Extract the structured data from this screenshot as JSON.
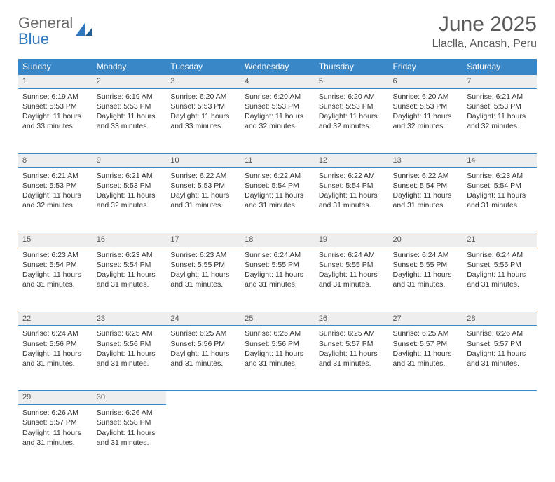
{
  "logo": {
    "general": "General",
    "blue": "Blue"
  },
  "title": "June 2025",
  "location": "Llaclla, Ancash, Peru",
  "colors": {
    "header_bg": "#3a87c8",
    "header_text": "#ffffff",
    "daynum_bg": "#eeeeee",
    "rule": "#3a87c8",
    "body_text": "#333333",
    "title_text": "#5a5a5a",
    "logo_gray": "#6a6a6a",
    "logo_blue": "#2f78bf"
  },
  "weekdays": [
    "Sunday",
    "Monday",
    "Tuesday",
    "Wednesday",
    "Thursday",
    "Friday",
    "Saturday"
  ],
  "weeks": [
    [
      {
        "n": 1,
        "sr": "6:19 AM",
        "ss": "5:53 PM",
        "dl": "11 hours and 33 minutes."
      },
      {
        "n": 2,
        "sr": "6:19 AM",
        "ss": "5:53 PM",
        "dl": "11 hours and 33 minutes."
      },
      {
        "n": 3,
        "sr": "6:20 AM",
        "ss": "5:53 PM",
        "dl": "11 hours and 33 minutes."
      },
      {
        "n": 4,
        "sr": "6:20 AM",
        "ss": "5:53 PM",
        "dl": "11 hours and 32 minutes."
      },
      {
        "n": 5,
        "sr": "6:20 AM",
        "ss": "5:53 PM",
        "dl": "11 hours and 32 minutes."
      },
      {
        "n": 6,
        "sr": "6:20 AM",
        "ss": "5:53 PM",
        "dl": "11 hours and 32 minutes."
      },
      {
        "n": 7,
        "sr": "6:21 AM",
        "ss": "5:53 PM",
        "dl": "11 hours and 32 minutes."
      }
    ],
    [
      {
        "n": 8,
        "sr": "6:21 AM",
        "ss": "5:53 PM",
        "dl": "11 hours and 32 minutes."
      },
      {
        "n": 9,
        "sr": "6:21 AM",
        "ss": "5:53 PM",
        "dl": "11 hours and 32 minutes."
      },
      {
        "n": 10,
        "sr": "6:22 AM",
        "ss": "5:53 PM",
        "dl": "11 hours and 31 minutes."
      },
      {
        "n": 11,
        "sr": "6:22 AM",
        "ss": "5:54 PM",
        "dl": "11 hours and 31 minutes."
      },
      {
        "n": 12,
        "sr": "6:22 AM",
        "ss": "5:54 PM",
        "dl": "11 hours and 31 minutes."
      },
      {
        "n": 13,
        "sr": "6:22 AM",
        "ss": "5:54 PM",
        "dl": "11 hours and 31 minutes."
      },
      {
        "n": 14,
        "sr": "6:23 AM",
        "ss": "5:54 PM",
        "dl": "11 hours and 31 minutes."
      }
    ],
    [
      {
        "n": 15,
        "sr": "6:23 AM",
        "ss": "5:54 PM",
        "dl": "11 hours and 31 minutes."
      },
      {
        "n": 16,
        "sr": "6:23 AM",
        "ss": "5:54 PM",
        "dl": "11 hours and 31 minutes."
      },
      {
        "n": 17,
        "sr": "6:23 AM",
        "ss": "5:55 PM",
        "dl": "11 hours and 31 minutes."
      },
      {
        "n": 18,
        "sr": "6:24 AM",
        "ss": "5:55 PM",
        "dl": "11 hours and 31 minutes."
      },
      {
        "n": 19,
        "sr": "6:24 AM",
        "ss": "5:55 PM",
        "dl": "11 hours and 31 minutes."
      },
      {
        "n": 20,
        "sr": "6:24 AM",
        "ss": "5:55 PM",
        "dl": "11 hours and 31 minutes."
      },
      {
        "n": 21,
        "sr": "6:24 AM",
        "ss": "5:55 PM",
        "dl": "11 hours and 31 minutes."
      }
    ],
    [
      {
        "n": 22,
        "sr": "6:24 AM",
        "ss": "5:56 PM",
        "dl": "11 hours and 31 minutes."
      },
      {
        "n": 23,
        "sr": "6:25 AM",
        "ss": "5:56 PM",
        "dl": "11 hours and 31 minutes."
      },
      {
        "n": 24,
        "sr": "6:25 AM",
        "ss": "5:56 PM",
        "dl": "11 hours and 31 minutes."
      },
      {
        "n": 25,
        "sr": "6:25 AM",
        "ss": "5:56 PM",
        "dl": "11 hours and 31 minutes."
      },
      {
        "n": 26,
        "sr": "6:25 AM",
        "ss": "5:57 PM",
        "dl": "11 hours and 31 minutes."
      },
      {
        "n": 27,
        "sr": "6:25 AM",
        "ss": "5:57 PM",
        "dl": "11 hours and 31 minutes."
      },
      {
        "n": 28,
        "sr": "6:26 AM",
        "ss": "5:57 PM",
        "dl": "11 hours and 31 minutes."
      }
    ],
    [
      {
        "n": 29,
        "sr": "6:26 AM",
        "ss": "5:57 PM",
        "dl": "11 hours and 31 minutes."
      },
      {
        "n": 30,
        "sr": "6:26 AM",
        "ss": "5:58 PM",
        "dl": "11 hours and 31 minutes."
      },
      null,
      null,
      null,
      null,
      null
    ]
  ],
  "labels": {
    "sunrise": "Sunrise:",
    "sunset": "Sunset:",
    "daylight": "Daylight:"
  }
}
